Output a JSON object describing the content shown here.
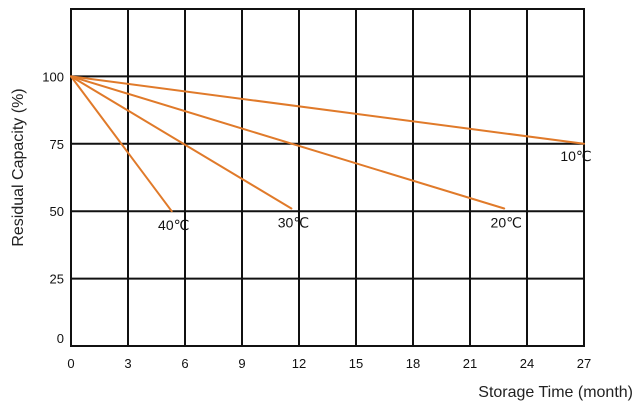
{
  "chart_data": {
    "type": "line",
    "title": "",
    "xlabel": "Storage Time (month)",
    "ylabel": "Residual Capacity (%)",
    "xlim": [
      0,
      27
    ],
    "ylim": [
      0,
      125
    ],
    "xticks": [
      0,
      3,
      6,
      9,
      12,
      15,
      18,
      21,
      24,
      27
    ],
    "yticks": [
      0,
      25,
      50,
      75,
      100
    ],
    "grid": true,
    "line_color": "#e07a2a",
    "grid_color": "#111111",
    "series": [
      {
        "name": "40℃",
        "x": [
          0,
          5.3
        ],
        "y": [
          100,
          50
        ]
      },
      {
        "name": "30℃",
        "x": [
          0,
          11.6
        ],
        "y": [
          100,
          51
        ]
      },
      {
        "name": "20℃",
        "x": [
          0,
          22.8
        ],
        "y": [
          100,
          51
        ]
      },
      {
        "name": "10℃",
        "x": [
          0,
          27
        ],
        "y": [
          100,
          75
        ]
      }
    ]
  }
}
